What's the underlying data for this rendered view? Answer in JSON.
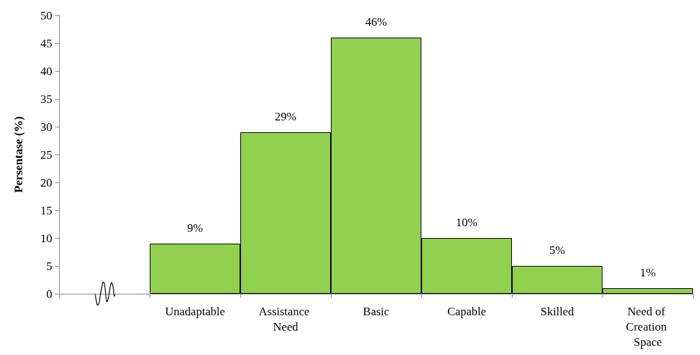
{
  "chart_data": {
    "type": "bar",
    "ylabel": "Persentase (%)",
    "categories": [
      null,
      "Unadaptable",
      "Assistance Need",
      "Basic",
      "Capable",
      "Skilled",
      "Need of Creation Space"
    ],
    "values": [
      null,
      9,
      29,
      46,
      10,
      5,
      1
    ],
    "value_labels": [
      null,
      "9%",
      "29%",
      "46%",
      "10%",
      "5%",
      "1%"
    ],
    "color": "#92d050",
    "ylim": [
      0,
      50
    ],
    "yticks": [
      0,
      5,
      10,
      15,
      20,
      25,
      30,
      35,
      40,
      45,
      50
    ],
    "grid": false
  }
}
